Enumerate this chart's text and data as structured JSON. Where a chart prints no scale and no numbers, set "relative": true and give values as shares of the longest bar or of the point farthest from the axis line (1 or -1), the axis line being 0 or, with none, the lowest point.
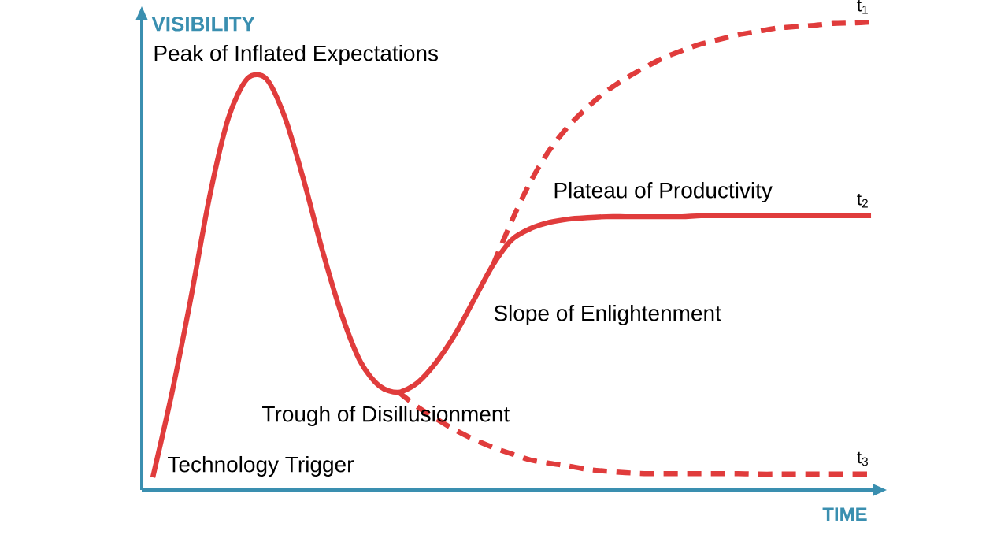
{
  "chart_data": {
    "type": "line",
    "relative": true,
    "xlabel": "TIME",
    "ylabel": "VISIBILITY",
    "categories": [
      null,
      null,
      null,
      null,
      null,
      null,
      null,
      null,
      null,
      null,
      null,
      null,
      null,
      null,
      null,
      null,
      null,
      null,
      null,
      null,
      null,
      null,
      null,
      null,
      null,
      null,
      null,
      null,
      null,
      null,
      null,
      null,
      null,
      null,
      null,
      null,
      null,
      null,
      null
    ],
    "series": [
      {
        "name": "t$_{1}$",
        "color": "#e03c3c",
        "line_style": "dashed",
        "values": [
          null,
          null,
          null,
          null,
          null,
          null,
          null,
          null,
          null,
          null,
          null,
          null,
          null,
          null,
          null,
          null,
          null,
          null,
          0.481,
          0.576,
          0.66,
          0.727,
          0.778,
          0.818,
          0.852,
          0.879,
          0.902,
          0.923,
          0.939,
          0.953,
          0.963,
          0.973,
          0.98,
          0.987,
          0.99,
          0.993,
          0.997,
          0.998,
          1
        ]
      },
      {
        "name": "t$_{2}$",
        "color": "#e03c3c",
        "line_style": "solid",
        "values": [
          0.027,
          0.205,
          0.407,
          0.626,
          0.795,
          0.879,
          0.879,
          0.795,
          0.66,
          0.508,
          0.374,
          0.273,
          0.222,
          0.209,
          0.229,
          0.273,
          0.333,
          0.407,
          0.481,
          0.535,
          0.559,
          0.572,
          0.579,
          0.582,
          0.584,
          0.584,
          0.584,
          0.584,
          0.584,
          0.586,
          0.586,
          0.586,
          0.586,
          0.586,
          0.586,
          0.586,
          0.586,
          0.586,
          0.586
        ]
      },
      {
        "name": "t$_{3}$",
        "color": "#e03c3c",
        "line_style": "dashed",
        "values": [
          null,
          null,
          null,
          null,
          null,
          null,
          null,
          null,
          null,
          null,
          null,
          null,
          null,
          0.209,
          0.178,
          0.152,
          0.128,
          0.108,
          0.091,
          0.077,
          0.064,
          0.057,
          0.051,
          0.044,
          0.04,
          0.037,
          0.035,
          0.035,
          0.035,
          0.035,
          0.035,
          0.035,
          0.034,
          0.034,
          0.034,
          0.034,
          0.034,
          0.034,
          0.034
        ]
      }
    ],
    "annotations": [
      "Peak of Inflated Expectations",
      "Plateau of Productivity",
      "Slope of Enlightenment",
      "Trough of Disillusionment",
      "Technology Trigger"
    ]
  }
}
